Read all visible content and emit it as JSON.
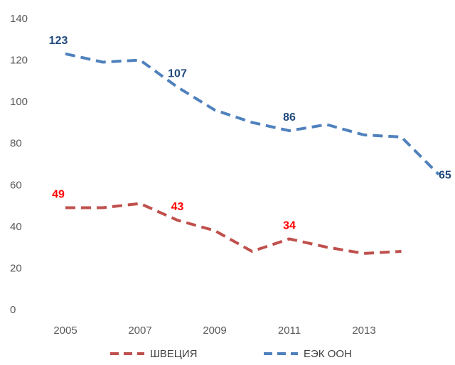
{
  "chart_data": {
    "type": "line",
    "x": [
      2005,
      2006,
      2007,
      2008,
      2009,
      2010,
      2011,
      2012,
      2013,
      2014,
      2015
    ],
    "xticks": [
      2005,
      2007,
      2009,
      2011,
      2013
    ],
    "ylim": [
      0,
      140
    ],
    "yticks": [
      0,
      20,
      40,
      60,
      80,
      100,
      120,
      140
    ],
    "series": [
      {
        "name": "ШВЕЦИЯ",
        "color": "#C0504D",
        "style": "dashed",
        "values": [
          49,
          49,
          51,
          43,
          38,
          28,
          34,
          30,
          27,
          28,
          null
        ],
        "data_labels": [
          {
            "x": 2005,
            "value": "49"
          },
          {
            "x": 2008,
            "value": "43"
          },
          {
            "x": 2011,
            "value": "34"
          }
        ],
        "label_color": "#FF0000"
      },
      {
        "name": "ЕЭК ООН",
        "color": "#4F81BD",
        "style": "dashed",
        "values": [
          123,
          119,
          120,
          107,
          96,
          90,
          86,
          89,
          84,
          83,
          65
        ],
        "data_labels": [
          {
            "x": 2005,
            "value": "123"
          },
          {
            "x": 2008,
            "value": "107"
          },
          {
            "x": 2011,
            "value": "86"
          },
          {
            "x": 2015,
            "value": "65"
          }
        ],
        "label_color": "#1F497D"
      }
    ],
    "grid": false,
    "legend_position": "bottom"
  }
}
